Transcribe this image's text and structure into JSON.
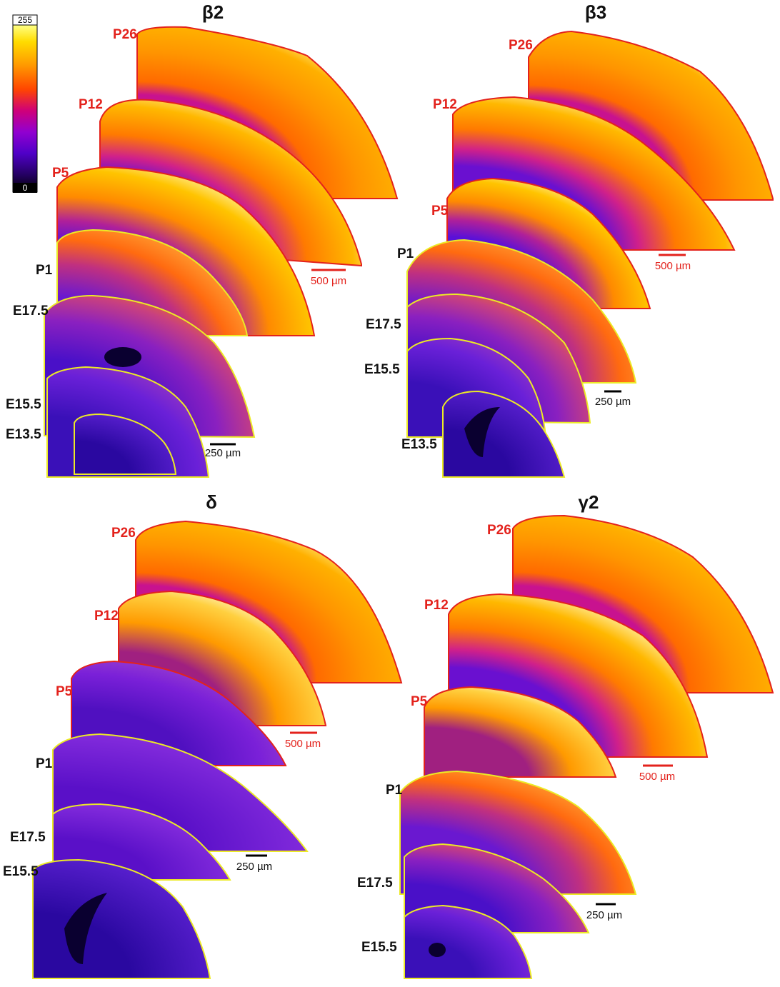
{
  "colorbar": {
    "max": "255",
    "min": "0"
  },
  "colors": {
    "postnatal_label": "#e3221c",
    "embryonic_label": "#111111",
    "postnatal_outline": "#e3221c",
    "embryonic_outline": "#ecea25",
    "lut": [
      "#000000",
      "#250064",
      "#5000c8",
      "#9200d0",
      "#cf0079",
      "#ff4500",
      "#ff9b00",
      "#ffdc00",
      "#ffff80",
      "#ffffff"
    ]
  },
  "panels": [
    {
      "title": "β2",
      "ages": [
        "P26",
        "P12",
        "P5",
        "P1",
        "E17.5",
        "E15.5",
        "E13.5"
      ],
      "scalebars": [
        "500 µm",
        "250 µm"
      ]
    },
    {
      "title": "β3",
      "ages": [
        "P26",
        "P12",
        "P5",
        "P1",
        "E17.5",
        "E15.5",
        "E13.5"
      ],
      "scalebars": [
        "500 µm",
        "250 µm"
      ]
    },
    {
      "title": "δ",
      "ages": [
        "P26",
        "P12",
        "P5",
        "P1",
        "E17.5",
        "E15.5"
      ],
      "scalebars": [
        "500 µm",
        "250 µm"
      ]
    },
    {
      "title": "γ2",
      "ages": [
        "P26",
        "P12",
        "P5",
        "P1",
        "E17.5",
        "E15.5"
      ],
      "scalebars": [
        "500 µm",
        "250 µm"
      ]
    }
  ]
}
